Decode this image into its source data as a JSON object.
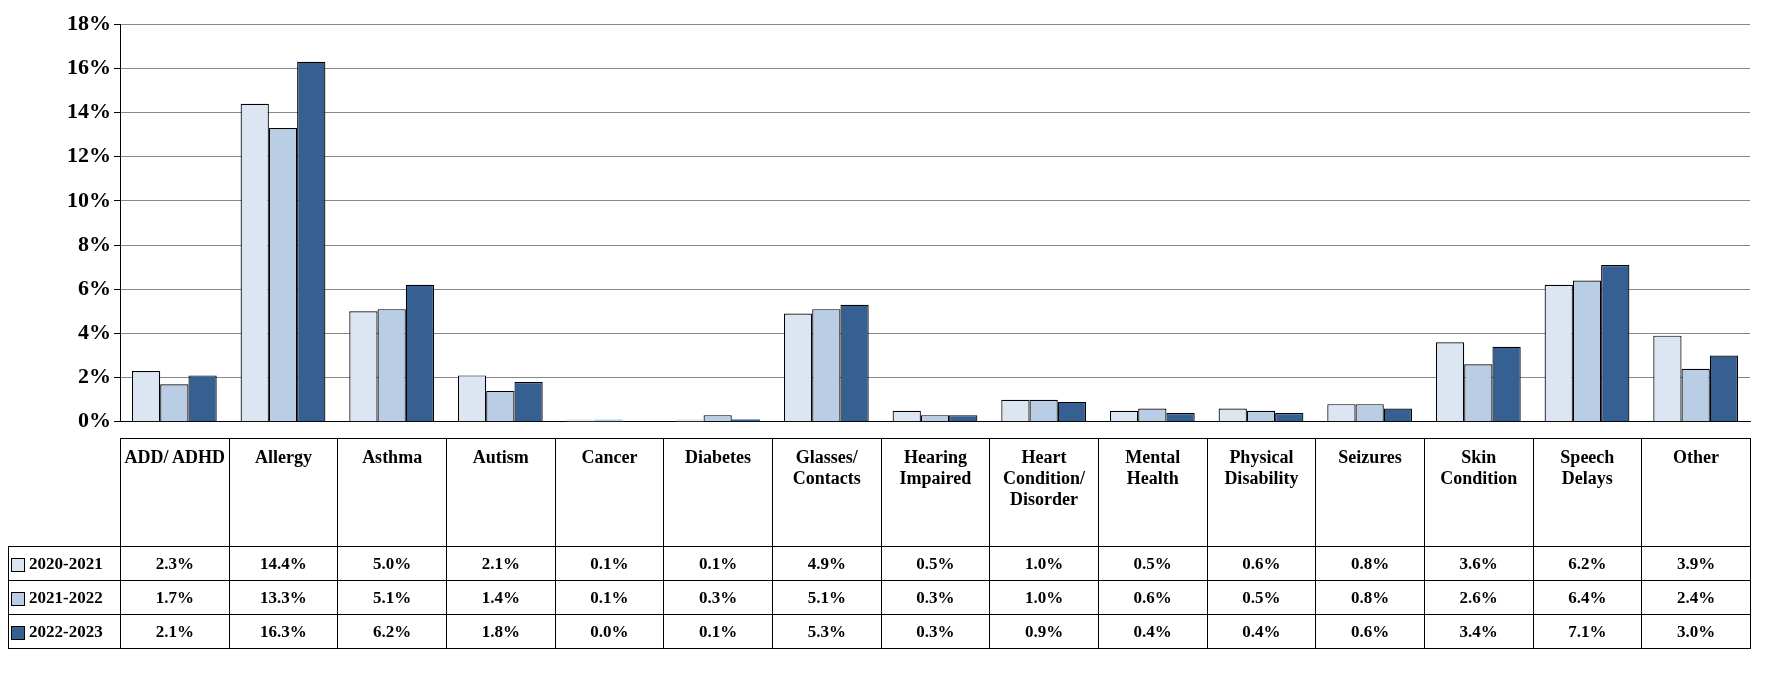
{
  "chart_data": {
    "type": "bar",
    "categories": [
      "ADD/ ADHD",
      "Allergy",
      "Asthma",
      "Autism",
      "Cancer",
      "Diabetes",
      "Glasses/ Contacts",
      "Hearing Impaired",
      "Heart Condition/ Disorder",
      "Mental Health",
      "Physical Disability",
      "Seizures",
      "Skin Condition",
      "Speech Delays",
      "Other"
    ],
    "series": [
      {
        "name": "2020-2021",
        "color": "#dce6f2",
        "values": [
          2.3,
          14.4,
          5.0,
          2.1,
          0.1,
          0.1,
          4.9,
          0.5,
          1.0,
          0.5,
          0.6,
          0.8,
          3.6,
          6.2,
          3.9
        ],
        "value_labels": [
          "2.3%",
          "14.4%",
          "5.0%",
          "2.1%",
          "0.1%",
          "0.1%",
          "4.9%",
          "0.5%",
          "1.0%",
          "0.5%",
          "0.6%",
          "0.8%",
          "3.6%",
          "6.2%",
          "3.9%"
        ]
      },
      {
        "name": "2021-2022",
        "color": "#b9cde5",
        "values": [
          1.7,
          13.3,
          5.1,
          1.4,
          0.1,
          0.3,
          5.1,
          0.3,
          1.0,
          0.6,
          0.5,
          0.8,
          2.6,
          6.4,
          2.4
        ],
        "value_labels": [
          "1.7%",
          "13.3%",
          "5.1%",
          "1.4%",
          "0.1%",
          "0.3%",
          "5.1%",
          "0.3%",
          "1.0%",
          "0.6%",
          "0.5%",
          "0.8%",
          "2.6%",
          "6.4%",
          "2.4%"
        ]
      },
      {
        "name": "2022-2023",
        "color": "#376092",
        "values": [
          2.1,
          16.3,
          6.2,
          1.8,
          0.0,
          0.1,
          5.3,
          0.3,
          0.9,
          0.4,
          0.4,
          0.6,
          3.4,
          7.1,
          3.0
        ],
        "value_labels": [
          "2.1%",
          "16.3%",
          "6.2%",
          "1.8%",
          "0.0%",
          "0.1%",
          "5.3%",
          "0.3%",
          "0.9%",
          "0.4%",
          "0.4%",
          "0.6%",
          "3.4%",
          "7.1%",
          "3.0%"
        ]
      }
    ],
    "ylim": [
      0,
      18
    ],
    "yticks": [
      {
        "value": 0,
        "label": "0%"
      },
      {
        "value": 2,
        "label": "2%"
      },
      {
        "value": 4,
        "label": "4%"
      },
      {
        "value": 6,
        "label": "6%"
      },
      {
        "value": 8,
        "label": "8%"
      },
      {
        "value": 10,
        "label": "10%"
      },
      {
        "value": 12,
        "label": "12%"
      },
      {
        "value": 14,
        "label": "14%"
      },
      {
        "value": 16,
        "label": "16%"
      },
      {
        "value": 18,
        "label": "18%"
      }
    ],
    "grid": "y",
    "legend": "bottom"
  }
}
